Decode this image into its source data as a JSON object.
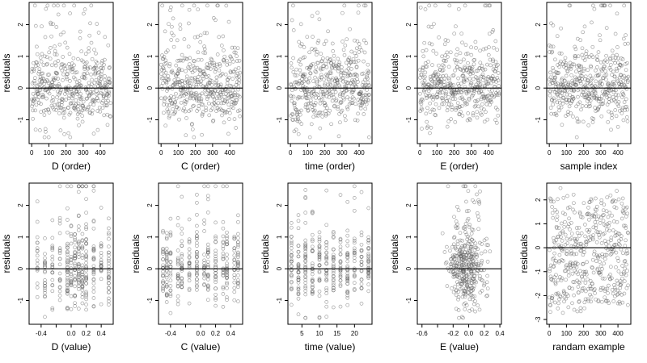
{
  "chart_data": [
    {
      "type": "scatter",
      "xlabel": "D (order)",
      "ylabel": "residuals",
      "xlim": [
        -15,
        475
      ],
      "ylim": [
        -1.75,
        2.7
      ],
      "xticks": [
        0,
        100,
        200,
        300,
        400
      ],
      "xtick_labels": [
        "0",
        "100",
        "200",
        "300",
        "400"
      ],
      "yticks": [
        -1,
        0,
        1,
        2
      ],
      "ytick_labels": [
        "-1",
        "0",
        "1",
        "2"
      ],
      "zero_line": true,
      "point_count": 460,
      "x_range": [
        0,
        460
      ],
      "x_mode": "index"
    },
    {
      "type": "scatter",
      "xlabel": "C (order)",
      "ylabel": "residuals",
      "xlim": [
        -15,
        475
      ],
      "ylim": [
        -1.75,
        2.7
      ],
      "xticks": [
        0,
        100,
        200,
        300,
        400
      ],
      "xtick_labels": [
        "0",
        "100",
        "200",
        "300",
        "400"
      ],
      "yticks": [
        -1,
        0,
        1,
        2
      ],
      "ytick_labels": [
        "-1",
        "0",
        "1",
        "2"
      ],
      "zero_line": true,
      "point_count": 460,
      "x_range": [
        0,
        460
      ],
      "x_mode": "index"
    },
    {
      "type": "scatter",
      "xlabel": "time (order)",
      "ylabel": "residuals",
      "xlim": [
        -15,
        475
      ],
      "ylim": [
        -1.75,
        2.7
      ],
      "xticks": [
        0,
        100,
        200,
        300,
        400
      ],
      "xtick_labels": [
        "0",
        "100",
        "200",
        "300",
        "400"
      ],
      "yticks": [
        -1,
        0,
        1,
        2
      ],
      "ytick_labels": [
        "-1",
        "0",
        "1",
        "2"
      ],
      "zero_line": true,
      "point_count": 460,
      "x_range": [
        0,
        460
      ],
      "x_mode": "index"
    },
    {
      "type": "scatter",
      "xlabel": "E (order)",
      "ylabel": "residuals",
      "xlim": [
        -15,
        475
      ],
      "ylim": [
        -1.75,
        2.7
      ],
      "xticks": [
        0,
        100,
        200,
        300,
        400
      ],
      "xtick_labels": [
        "0",
        "100",
        "200",
        "300",
        "400"
      ],
      "yticks": [
        -1,
        0,
        1,
        2
      ],
      "ytick_labels": [
        "-1",
        "0",
        "1",
        "2"
      ],
      "zero_line": true,
      "point_count": 460,
      "x_range": [
        0,
        460
      ],
      "x_mode": "index"
    },
    {
      "type": "scatter",
      "xlabel": "sample index",
      "ylabel": "residuals",
      "xlim": [
        -15,
        475
      ],
      "ylim": [
        -1.75,
        2.7
      ],
      "xticks": [
        0,
        100,
        200,
        300,
        400
      ],
      "xtick_labels": [
        "0",
        "100",
        "200",
        "300",
        "400"
      ],
      "yticks": [
        -1,
        0,
        1,
        2
      ],
      "ytick_labels": [
        "-1",
        "0",
        "1",
        "2"
      ],
      "zero_line": true,
      "point_count": 460,
      "x_range": [
        0,
        460
      ],
      "x_mode": "index"
    },
    {
      "type": "scatter",
      "xlabel": "D (value)",
      "ylabel": "residuals",
      "xlim": [
        -0.56,
        0.56
      ],
      "ylim": [
        -1.75,
        2.7
      ],
      "xticks": [
        -0.4,
        -0.2,
        0.0,
        0.2,
        0.4
      ],
      "xtick_labels": [
        "-0.4",
        "",
        "0.0",
        "0.2",
        "0.4"
      ],
      "yticks": [
        -1,
        0,
        1,
        2
      ],
      "ytick_labels": [
        "-1",
        "0",
        "1",
        "2"
      ],
      "zero_line": true,
      "point_count": 360,
      "x_range": [
        -0.5,
        0.5
      ],
      "x_mode": "discrete",
      "x_levels": [
        -0.45,
        -0.35,
        -0.25,
        -0.15,
        -0.05,
        0.0,
        0.05,
        0.1,
        0.15,
        0.2,
        0.3,
        0.4,
        0.5
      ]
    },
    {
      "type": "scatter",
      "xlabel": "C (value)",
      "ylabel": "residuals",
      "xlim": [
        -0.56,
        0.56
      ],
      "ylim": [
        -1.75,
        2.7
      ],
      "xticks": [
        -0.4,
        -0.2,
        0.0,
        0.2,
        0.4
      ],
      "xtick_labels": [
        "-0.4",
        "",
        "0.0",
        "0.2",
        "0.4"
      ],
      "yticks": [
        -1,
        0,
        1,
        2
      ],
      "ytick_labels": [
        "-1",
        "0",
        "1",
        "2"
      ],
      "zero_line": true,
      "point_count": 360,
      "x_range": [
        -0.5,
        0.5
      ],
      "x_mode": "discrete",
      "x_levels": [
        -0.5,
        -0.45,
        -0.4,
        -0.3,
        -0.25,
        -0.15,
        -0.05,
        0.05,
        0.1,
        0.2,
        0.3,
        0.35,
        0.45,
        0.5
      ]
    },
    {
      "type": "scatter",
      "xlabel": "time (value)",
      "ylabel": "residuals",
      "xlim": [
        1,
        25
      ],
      "ylim": [
        -1.75,
        2.7
      ],
      "xticks": [
        5,
        10,
        15,
        20
      ],
      "xtick_labels": [
        "5",
        "10",
        "15",
        "20"
      ],
      "yticks": [
        -1,
        0,
        1,
        2
      ],
      "ytick_labels": [
        "-1",
        "0",
        "1",
        "2"
      ],
      "zero_line": true,
      "point_count": 360,
      "x_range": [
        2,
        24
      ],
      "x_mode": "discrete",
      "x_levels": [
        2,
        4,
        6,
        8,
        10,
        12,
        14,
        16,
        18,
        20,
        22,
        24
      ]
    },
    {
      "type": "scatter",
      "xlabel": "E (value)",
      "ylabel": "residuals",
      "xlim": [
        -0.66,
        0.42
      ],
      "ylim": [
        -1.75,
        2.7
      ],
      "xticks": [
        -0.6,
        -0.4,
        -0.2,
        0.0,
        0.2,
        0.4
      ],
      "xtick_labels": [
        "-0.6",
        "",
        "-0.2",
        "0.0",
        "0.2",
        "0.4"
      ],
      "yticks": [
        -1,
        0,
        1,
        2
      ],
      "ytick_labels": [
        "-1",
        "0",
        "1",
        "2"
      ],
      "zero_line": true,
      "point_count": 360,
      "x_range": [
        -0.55,
        0.4
      ],
      "x_mode": "clustered",
      "x_center": -0.03
    },
    {
      "type": "scatter",
      "xlabel": "randam example",
      "ylabel": "residuals",
      "xlim": [
        -15,
        475
      ],
      "ylim": [
        -3.2,
        2.7
      ],
      "xticks": [
        0,
        100,
        200,
        300,
        400
      ],
      "xtick_labels": [
        "0",
        "100",
        "200",
        "300",
        "400"
      ],
      "yticks": [
        -3,
        -2,
        -1,
        0,
        1,
        2
      ],
      "ytick_labels": [
        "-3",
        "-2",
        "-1",
        "0",
        "1",
        "2"
      ],
      "zero_line": true,
      "point_count": 460,
      "x_range": [
        0,
        460
      ],
      "x_mode": "index",
      "y_distribution": "uniform-wide"
    }
  ]
}
